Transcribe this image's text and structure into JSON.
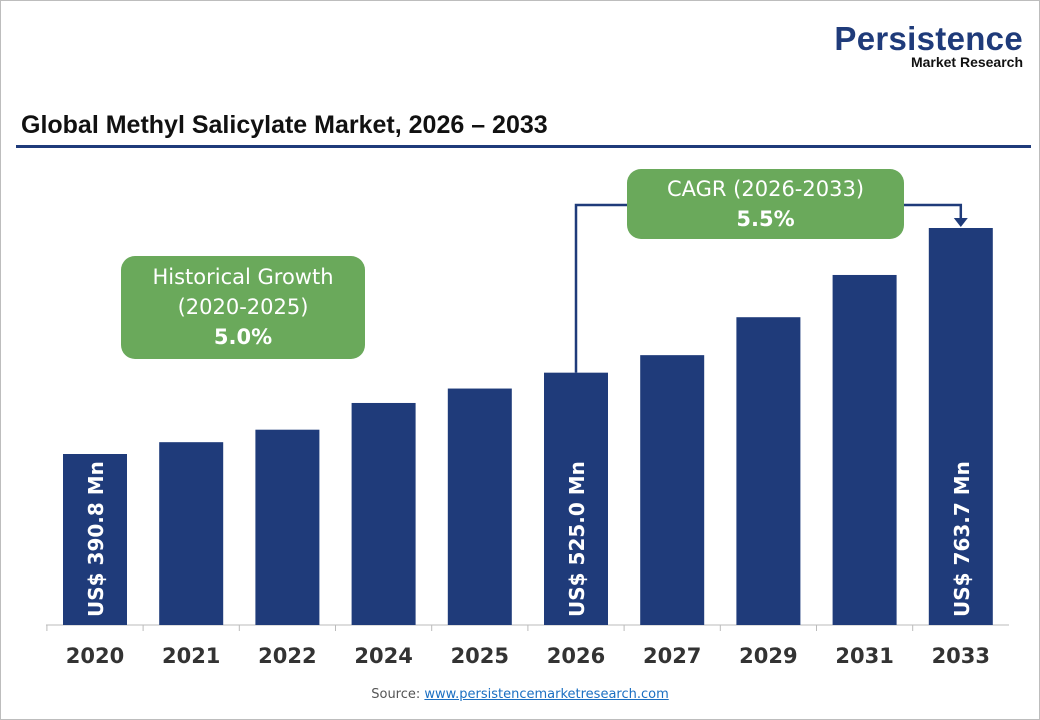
{
  "logo": {
    "line1": "Persistence",
    "line2": "Market Research"
  },
  "chart_data": {
    "type": "bar",
    "title": "Global Methyl Salicylate Market, 2026 – 2033",
    "categories": [
      "2020",
      "2021",
      "2022",
      "2024",
      "2025",
      "2026",
      "2027",
      "2029",
      "2031",
      "2033"
    ],
    "values": [
      390.8,
      410.3,
      430.9,
      475.0,
      498.8,
      525.0,
      553.9,
      616.5,
      686.2,
      763.7
    ],
    "data_labels": {
      "0": "US$ 390.8 Mn",
      "5": "US$ 525.0 Mn",
      "9": "US$ 763.7 Mn"
    },
    "color": "#1f3b7a",
    "grid": false,
    "annotations": {
      "historical": {
        "line1": "Historical Growth",
        "line2": "(2020-2025)",
        "value": "5.0%"
      },
      "cagr": {
        "line1": "CAGR (2026-2033)",
        "value": "5.5%"
      }
    }
  },
  "source": {
    "label": "Source:",
    "link": "www.persistencemarketresearch.com"
  }
}
